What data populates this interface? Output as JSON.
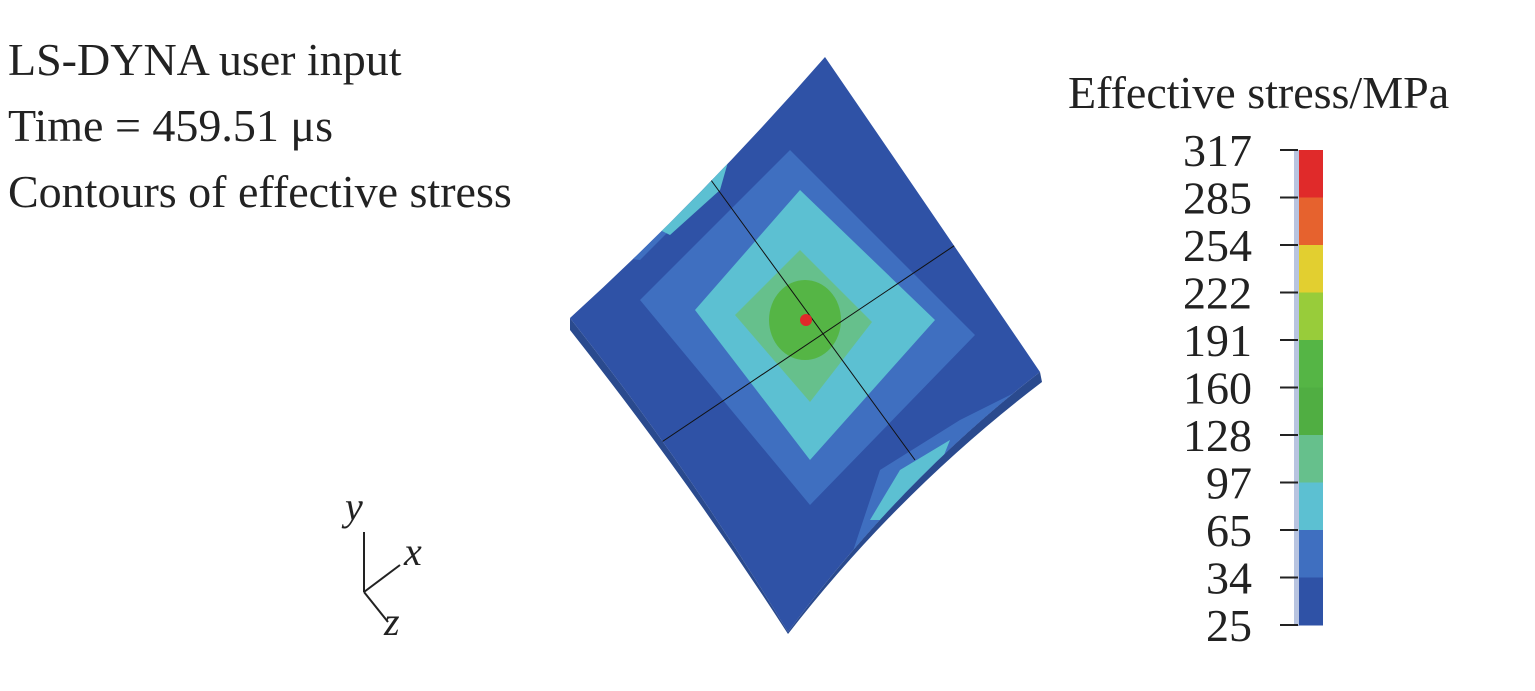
{
  "header": {
    "lines": [
      "LS-DYNA user input",
      "Time = 459.51 μs",
      "Contours of effective stress"
    ]
  },
  "colorbar": {
    "title": "Effective stress/MPa",
    "labels": [
      "317",
      "285",
      "254",
      "222",
      "191",
      "160",
      "128",
      "97",
      "65",
      "34",
      "25"
    ],
    "colors": [
      "#e02a2a",
      "#e6622e",
      "#e2cf30",
      "#98cc3a",
      "#55b545",
      "#50ae42",
      "#66c08c",
      "#5cc0d2",
      "#3f6fc0",
      "#2f52a6"
    ]
  },
  "axes": {
    "y": "y",
    "x": "x",
    "z": "z"
  }
}
